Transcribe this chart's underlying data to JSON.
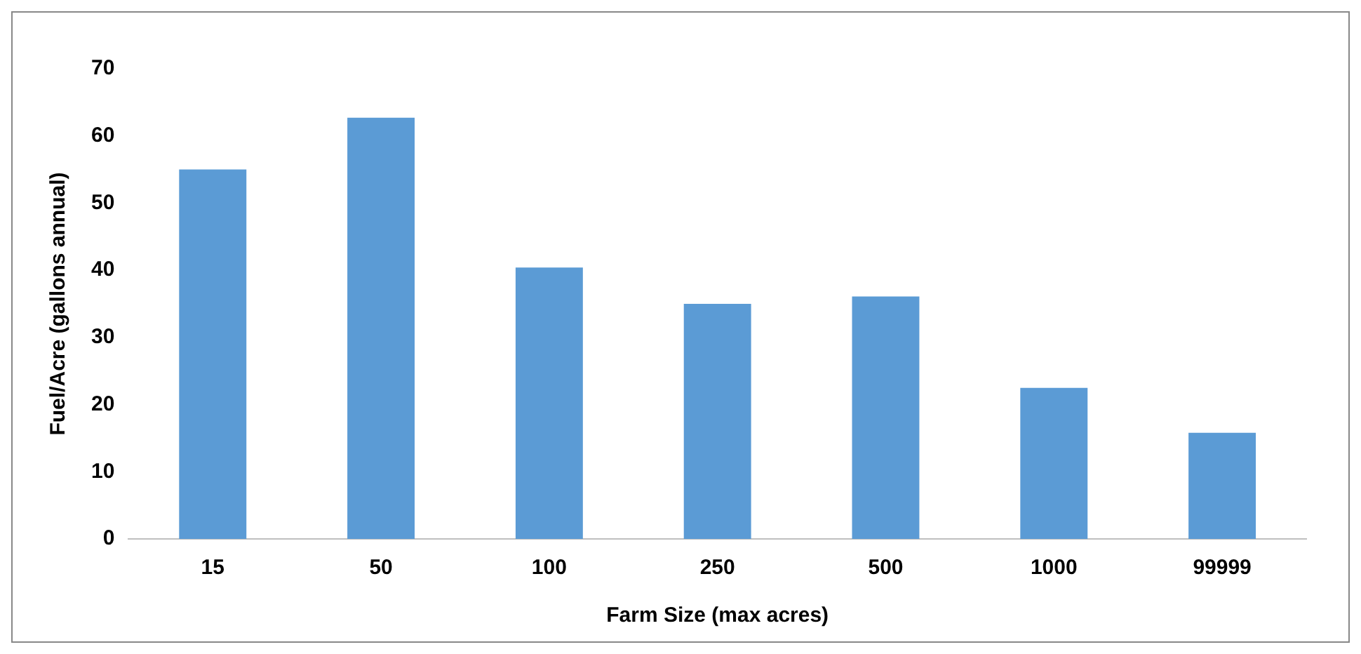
{
  "chart_data": {
    "type": "bar",
    "xlabel": "Farm Size (max acres)",
    "ylabel": "Fuel/Acre (gallons annual)",
    "categories": [
      "15",
      "50",
      "100",
      "250",
      "500",
      "1000",
      "99999"
    ],
    "values": [
      55,
      62.7,
      40.4,
      35,
      36.1,
      22.5,
      15.8
    ],
    "color": "#5b9bd5",
    "ylim": [
      0,
      70
    ],
    "yticks": [
      0,
      10,
      20,
      30,
      40,
      50,
      60,
      70
    ],
    "grid": false,
    "legend": false
  }
}
